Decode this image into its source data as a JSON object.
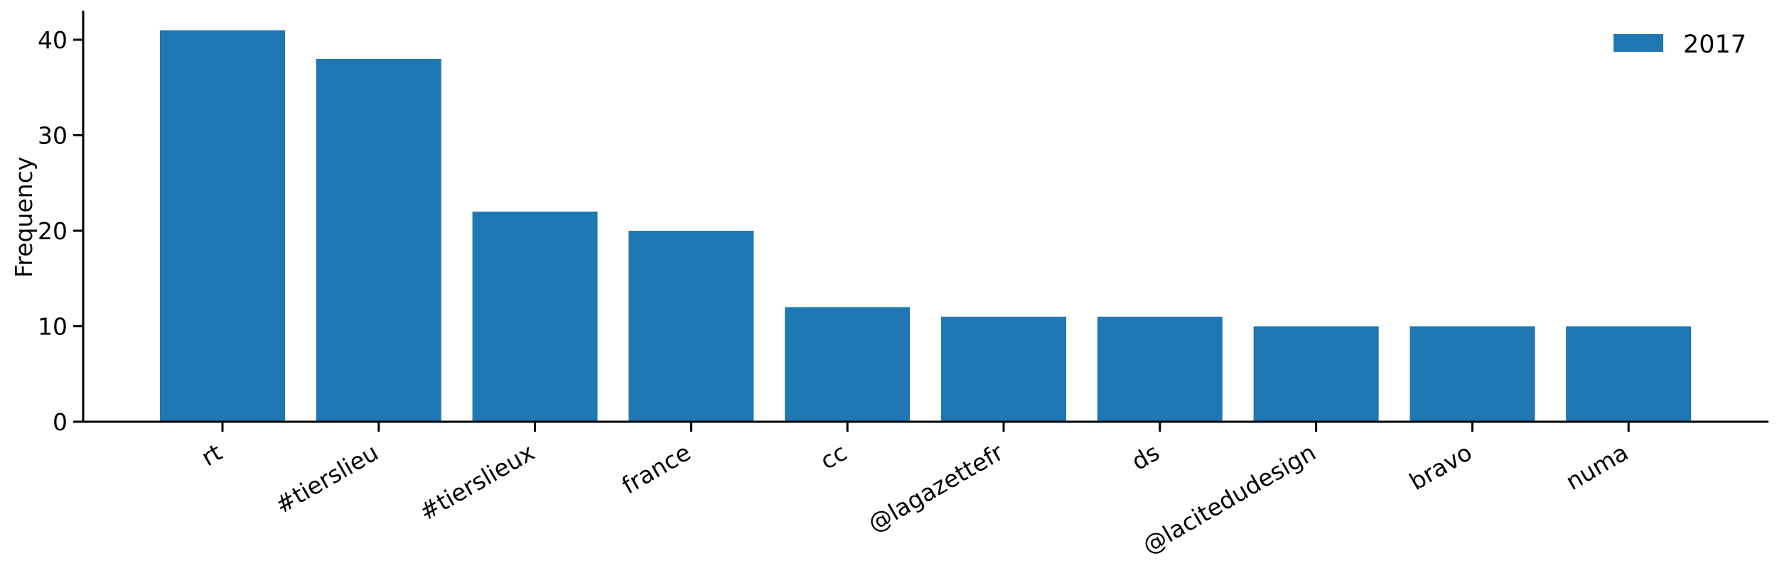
{
  "chart_data": {
    "type": "bar",
    "title": "",
    "xlabel": "",
    "ylabel": "Frequency",
    "categories": [
      "rt",
      "#tierslieu",
      "#tierslieux",
      "france",
      "cc",
      "@lagazettefr",
      "ds",
      "@lacitedudesign",
      "bravo",
      "numa"
    ],
    "series": [
      {
        "name": "2017",
        "values": [
          41,
          38,
          22,
          20,
          12,
          11,
          11,
          10,
          10,
          10
        ]
      }
    ],
    "ylim": [
      0,
      43
    ],
    "yticks": [
      0,
      10,
      20,
      30,
      40
    ],
    "grid": false,
    "legend_position": "top-right",
    "bar_color": "#1f77b4"
  }
}
